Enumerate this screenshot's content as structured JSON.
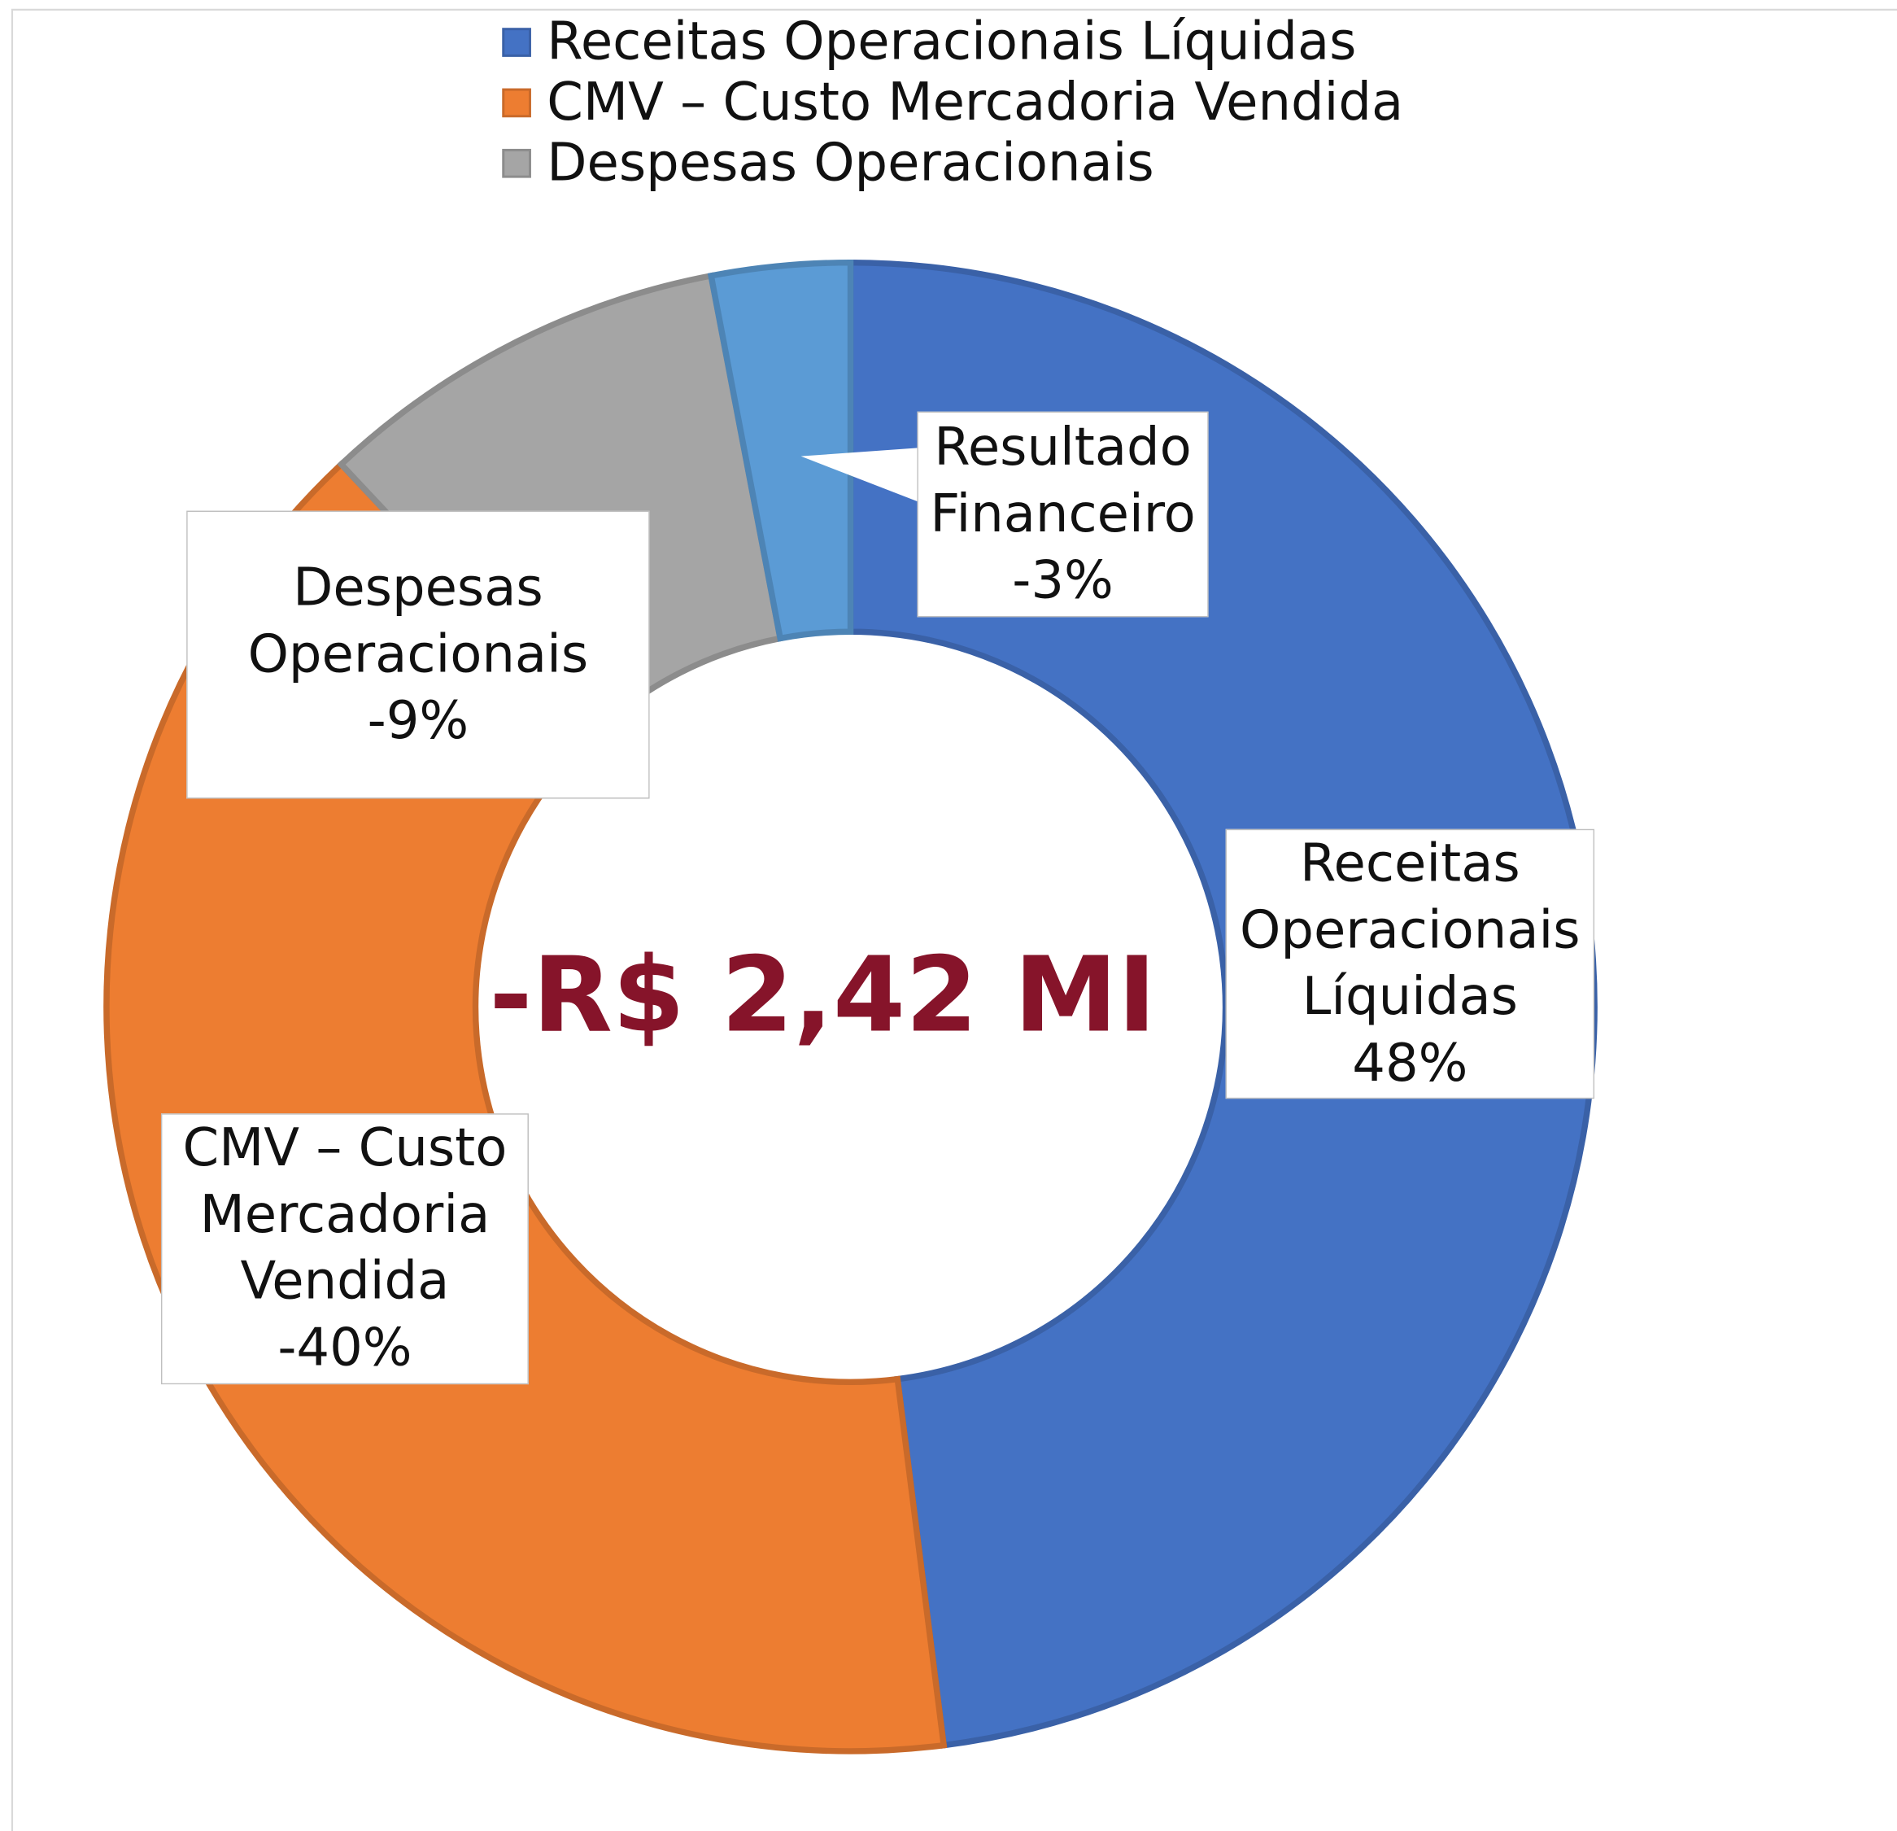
{
  "chart_data": {
    "type": "donut",
    "categories": [
      "Receitas Operacionais Líquidas",
      "CMV – Custo Mercadoria Vendida",
      "Despesas Operacionais",
      "Resultado Financeiro"
    ],
    "values": [
      48,
      -40,
      -9,
      -3
    ],
    "value_labels": [
      "48%",
      "-40%",
      "-9%",
      "-3%"
    ],
    "colors": [
      "#4472c4",
      "#ed7d31",
      "#a5a5a5",
      "#5b9bd5"
    ],
    "show_in_legend": [
      true,
      true,
      true,
      false
    ],
    "center_label": "-R$ 2,42 MI",
    "legend": "top"
  }
}
